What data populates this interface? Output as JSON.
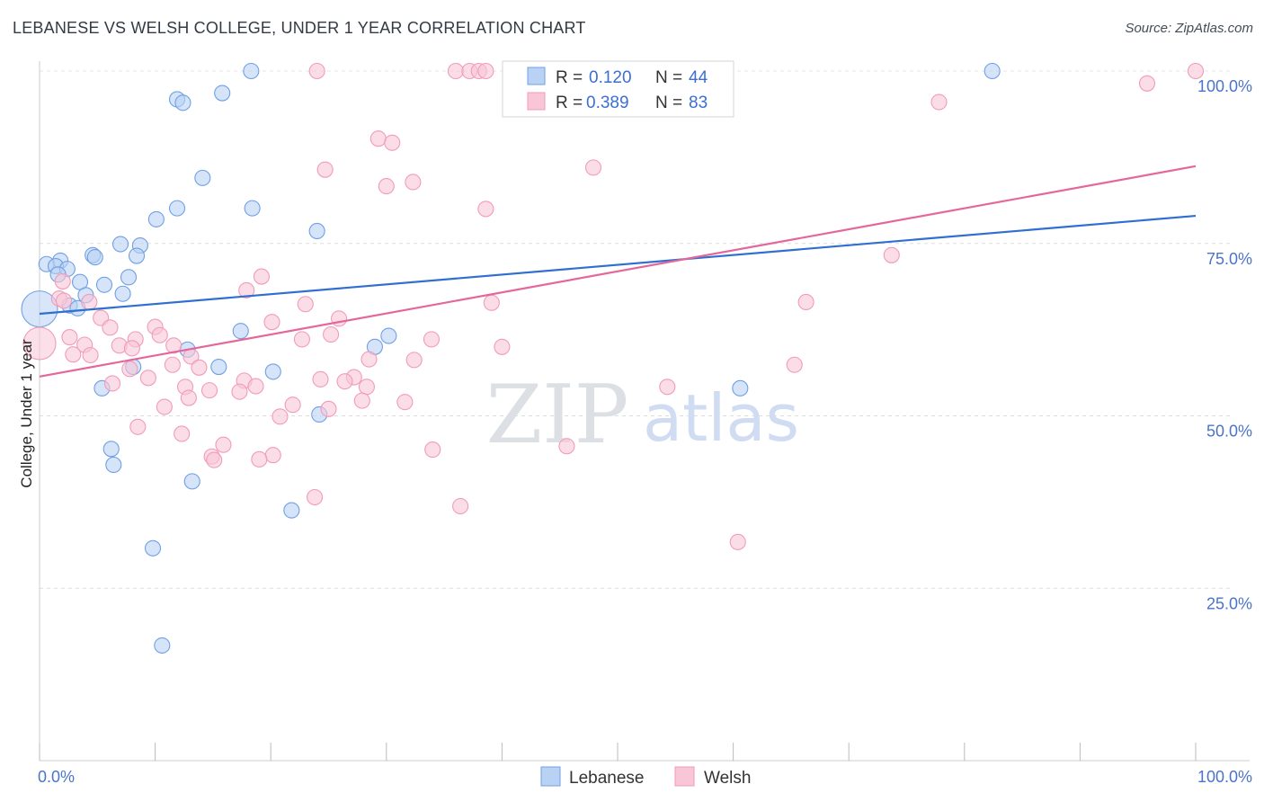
{
  "title": "LEBANESE VS WELSH COLLEGE, UNDER 1 YEAR CORRELATION CHART",
  "source": "Source: ZipAtlas.com",
  "watermark": {
    "zip": "ZIP",
    "atlas": "atlas"
  },
  "chart_data": {
    "type": "scatter",
    "title": "LEBANESE VS WELSH COLLEGE, UNDER 1 YEAR CORRELATION CHART",
    "xlabel": "",
    "ylabel": "College, Under 1 year",
    "xlim": [
      0,
      100
    ],
    "ylim": [
      0,
      102
    ],
    "x_tick_labels": [
      {
        "value": 0,
        "label": "0.0%"
      },
      {
        "value": 100,
        "label": "100.0%"
      }
    ],
    "y_ticks": [
      {
        "value": 25,
        "label": "25.0%"
      },
      {
        "value": 50,
        "label": "50.0%"
      },
      {
        "value": 75,
        "label": "75.0%"
      },
      {
        "value": 100,
        "label": "100.0%"
      }
    ],
    "grid": true,
    "legend_position": "top-center",
    "series": [
      {
        "name": "Lebanese",
        "color": "#6fa0e4",
        "fill": "#b9d2f4",
        "line_color": "#2e6fd0",
        "r_label": "R =",
        "r_value": "0.120",
        "n_label": "N =",
        "n_value": "44",
        "trend": {
          "x0": 0,
          "y0": 64.8,
          "x1": 100,
          "y1": 79.0
        },
        "points": [
          [
            18.3,
            100
          ],
          [
            82.4,
            100
          ],
          [
            11.9,
            95.9
          ],
          [
            12.4,
            95.4
          ],
          [
            15.8,
            96.8
          ],
          [
            14.1,
            84.5
          ],
          [
            18.4,
            80.1
          ],
          [
            11.9,
            80.1
          ],
          [
            10.1,
            78.5
          ],
          [
            24.0,
            76.8
          ],
          [
            7.0,
            74.9
          ],
          [
            8.7,
            74.7
          ],
          [
            4.6,
            73.3
          ],
          [
            4.8,
            73.0
          ],
          [
            8.4,
            73.2
          ],
          [
            1.8,
            72.5
          ],
          [
            0.6,
            72.0
          ],
          [
            1.4,
            71.7
          ],
          [
            2.4,
            71.3
          ],
          [
            1.6,
            70.5
          ],
          [
            7.7,
            70.1
          ],
          [
            3.5,
            69.4
          ],
          [
            5.6,
            69.0
          ],
          [
            4.0,
            67.5
          ],
          [
            7.2,
            67.7
          ],
          [
            2.6,
            66.0
          ],
          [
            3.3,
            65.6
          ],
          [
            0,
            65.5
          ],
          [
            17.4,
            62.3
          ],
          [
            30.2,
            61.6
          ],
          [
            29.0,
            60.0
          ],
          [
            12.8,
            59.6
          ],
          [
            20.2,
            56.4
          ],
          [
            8.1,
            57.1
          ],
          [
            15.5,
            57.1
          ],
          [
            5.4,
            54.0
          ],
          [
            60.6,
            54.0
          ],
          [
            24.2,
            50.2
          ],
          [
            6.2,
            45.2
          ],
          [
            6.4,
            42.9
          ],
          [
            13.2,
            40.5
          ],
          [
            21.8,
            36.3
          ],
          [
            9.8,
            30.8
          ],
          [
            10.6,
            16.7
          ]
        ]
      },
      {
        "name": "Welsh",
        "color": "#f29bb9",
        "fill": "#f8c6d7",
        "line_color": "#e5679a",
        "r_label": "R =",
        "r_value": "0.389",
        "n_label": "N =",
        "n_value": "83",
        "trend": {
          "x0": 0,
          "y0": 55.7,
          "x1": 100,
          "y1": 86.2
        },
        "points": [
          [
            24.0,
            100
          ],
          [
            36.0,
            100
          ],
          [
            37.2,
            100
          ],
          [
            38.0,
            100
          ],
          [
            38.6,
            100
          ],
          [
            41.1,
            100
          ],
          [
            100,
            100
          ],
          [
            95.8,
            98.2
          ],
          [
            77.8,
            95.5
          ],
          [
            29.3,
            90.2
          ],
          [
            30.5,
            89.6
          ],
          [
            47.9,
            86.0
          ],
          [
            24.7,
            85.7
          ],
          [
            32.3,
            83.9
          ],
          [
            30.0,
            83.3
          ],
          [
            38.6,
            80.0
          ],
          [
            73.7,
            73.3
          ],
          [
            19.2,
            70.2
          ],
          [
            2.0,
            69.5
          ],
          [
            17.9,
            68.2
          ],
          [
            1.7,
            67.0
          ],
          [
            2.1,
            66.7
          ],
          [
            4.3,
            66.5
          ],
          [
            23.0,
            66.2
          ],
          [
            39.1,
            66.4
          ],
          [
            66.3,
            66.5
          ],
          [
            5.3,
            64.2
          ],
          [
            25.9,
            64.1
          ],
          [
            20.1,
            63.6
          ],
          [
            6.1,
            62.8
          ],
          [
            10.0,
            62.9
          ],
          [
            2.6,
            61.4
          ],
          [
            8.3,
            61.1
          ],
          [
            10.4,
            61.7
          ],
          [
            25.2,
            61.8
          ],
          [
            22.7,
            61.1
          ],
          [
            33.9,
            61.1
          ],
          [
            11.6,
            60.2
          ],
          [
            3.9,
            60.3
          ],
          [
            6.9,
            60.2
          ],
          [
            8.0,
            59.8
          ],
          [
            40.0,
            60.0
          ],
          [
            0,
            60.5
          ],
          [
            2.9,
            58.9
          ],
          [
            4.4,
            58.8
          ],
          [
            13.1,
            58.6
          ],
          [
            28.5,
            58.2
          ],
          [
            32.4,
            58.1
          ],
          [
            11.5,
            57.4
          ],
          [
            13.8,
            57.0
          ],
          [
            65.3,
            57.4
          ],
          [
            7.8,
            56.8
          ],
          [
            9.4,
            55.5
          ],
          [
            17.7,
            55.1
          ],
          [
            24.3,
            55.3
          ],
          [
            27.2,
            55.6
          ],
          [
            26.4,
            55.0
          ],
          [
            18.7,
            54.3
          ],
          [
            6.3,
            54.7
          ],
          [
            12.6,
            54.2
          ],
          [
            28.3,
            54.2
          ],
          [
            54.3,
            54.2
          ],
          [
            14.7,
            53.7
          ],
          [
            17.3,
            53.5
          ],
          [
            12.9,
            52.6
          ],
          [
            27.9,
            52.2
          ],
          [
            31.6,
            52.0
          ],
          [
            21.9,
            51.6
          ],
          [
            10.8,
            51.3
          ],
          [
            25.0,
            51.0
          ],
          [
            20.8,
            49.9
          ],
          [
            8.5,
            48.4
          ],
          [
            12.3,
            47.4
          ],
          [
            15.9,
            45.8
          ],
          [
            45.6,
            45.6
          ],
          [
            34.0,
            45.1
          ],
          [
            20.2,
            44.3
          ],
          [
            14.9,
            44.1
          ],
          [
            15.1,
            43.6
          ],
          [
            19.0,
            43.7
          ],
          [
            23.8,
            38.2
          ],
          [
            36.4,
            36.9
          ],
          [
            60.4,
            31.7
          ]
        ]
      }
    ]
  }
}
